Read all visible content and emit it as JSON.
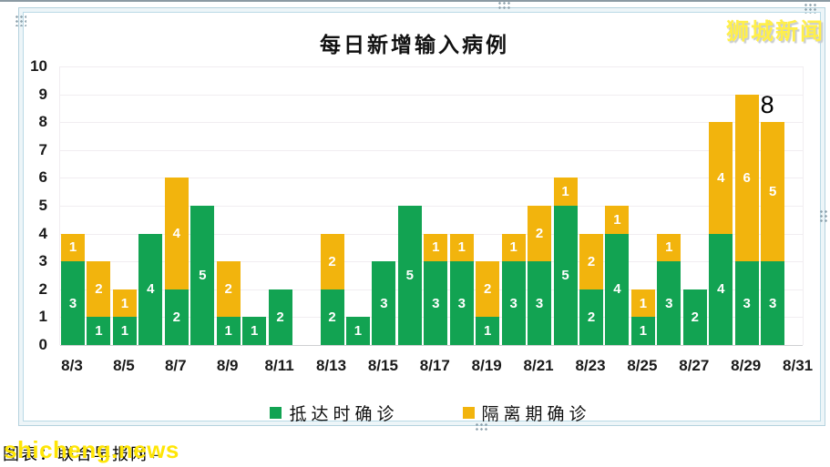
{
  "window": {
    "logo": "狮城新闻",
    "watermark": "shicheng.news",
    "caption_label": "图表：联合早报网",
    "caption_mark": "↵"
  },
  "chart_data": {
    "type": "bar",
    "stacked": true,
    "title": "每日新增输入病例",
    "categories": [
      "8/3",
      "8/4",
      "8/5",
      "8/6",
      "8/7",
      "8/8",
      "8/9",
      "8/10",
      "8/11",
      "8/12",
      "8/13",
      "8/14",
      "8/15",
      "8/16",
      "8/17",
      "8/18",
      "8/19",
      "8/20",
      "8/21",
      "8/22",
      "8/23",
      "8/24",
      "8/25",
      "8/26",
      "8/27",
      "8/28",
      "8/29",
      "8/30"
    ],
    "series": [
      {
        "name": "抵达时确诊",
        "color": "#12A352",
        "values": [
          3,
          1,
          1,
          4,
          2,
          5,
          1,
          1,
          2,
          0,
          2,
          1,
          3,
          5,
          3,
          3,
          1,
          3,
          3,
          5,
          2,
          4,
          1,
          3,
          2,
          4,
          3,
          3
        ]
      },
      {
        "name": "隔离期确诊",
        "color": "#F2B40D",
        "values": [
          1,
          2,
          1,
          0,
          4,
          0,
          2,
          0,
          0,
          0,
          2,
          0,
          0,
          0,
          1,
          1,
          2,
          1,
          2,
          1,
          2,
          1,
          1,
          1,
          0,
          4,
          6,
          5
        ]
      }
    ],
    "totals": [
      4,
      3,
      2,
      4,
      6,
      5,
      3,
      1,
      2,
      0,
      4,
      1,
      3,
      5,
      4,
      4,
      3,
      4,
      5,
      6,
      4,
      5,
      2,
      4,
      2,
      8,
      9,
      8
    ],
    "ylim": [
      0,
      10
    ],
    "yticks": [
      0,
      1,
      2,
      3,
      4,
      5,
      6,
      7,
      8,
      9,
      10
    ],
    "x_tick_labels": [
      "8/3",
      "8/5",
      "8/7",
      "8/9",
      "8/11",
      "8/13",
      "8/15",
      "8/17",
      "8/19",
      "8/21",
      "8/23",
      "8/25",
      "8/27",
      "8/29",
      "8/31"
    ],
    "annotation": {
      "text": "8",
      "category": "8/30"
    },
    "legend_position": "bottom",
    "grid": true,
    "segment_labels": "white, shown on every non-zero segment"
  }
}
